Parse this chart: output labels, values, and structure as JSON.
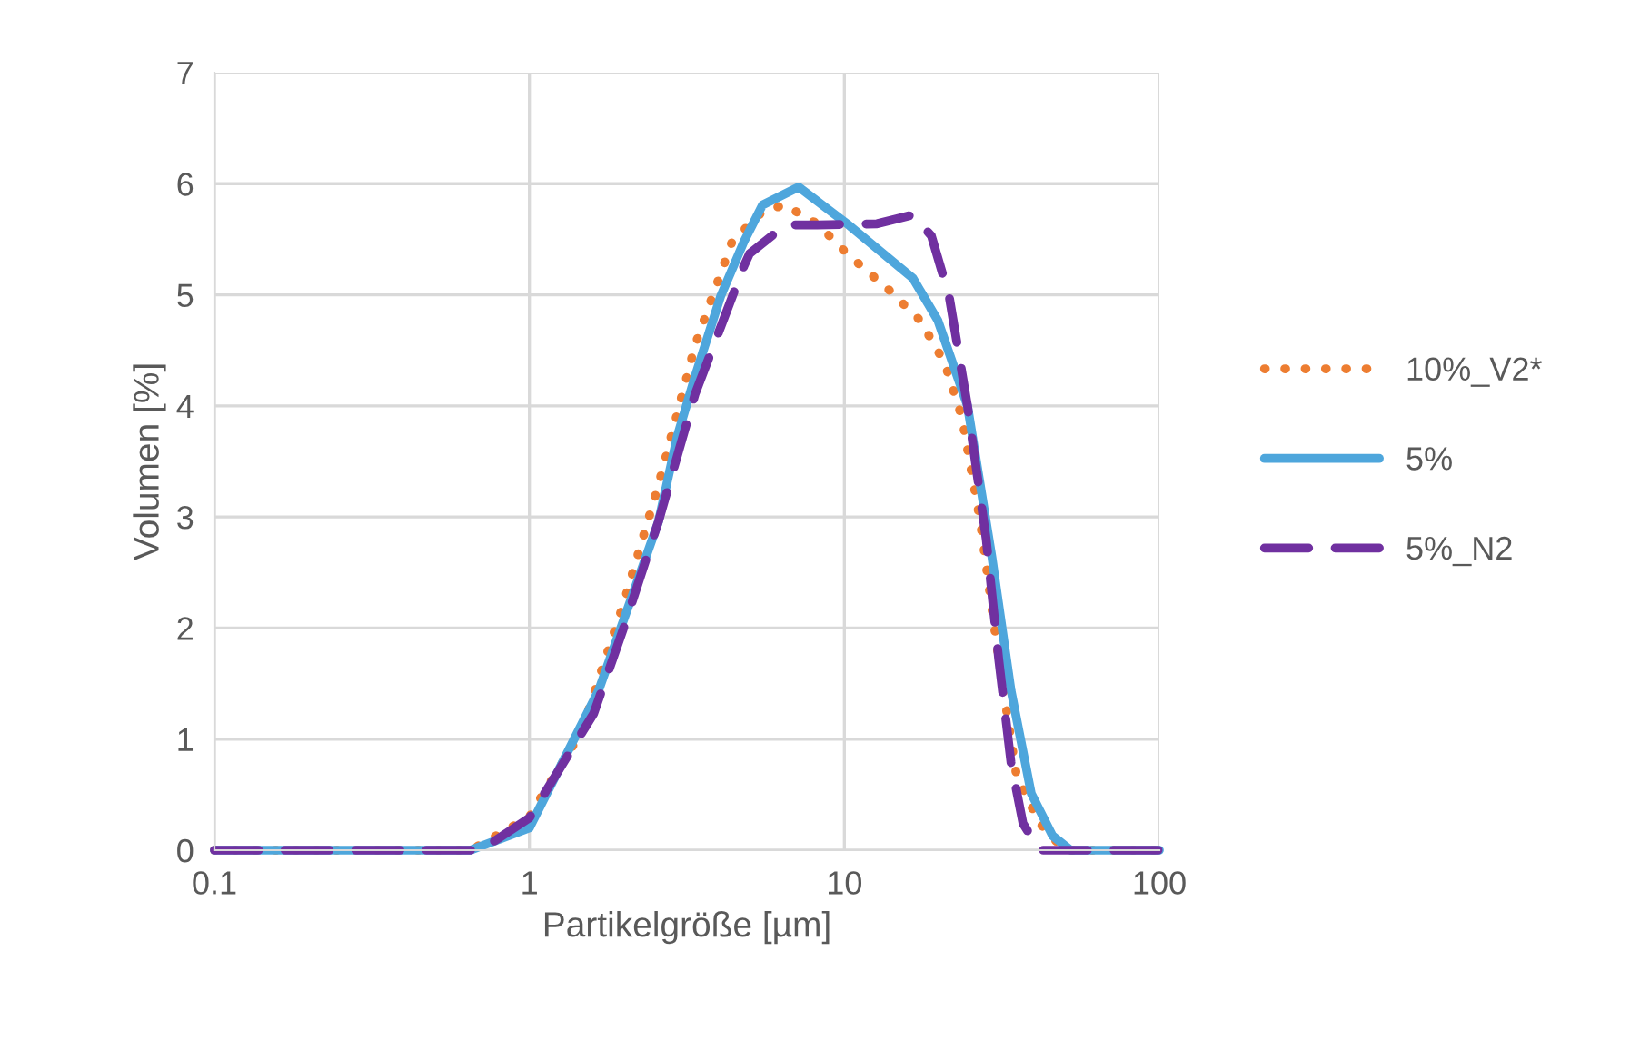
{
  "chart_data": {
    "type": "line",
    "xlabel": "Partikelgröße [µm]",
    "ylabel": "Volumen [%]",
    "log": "x",
    "xlim": [
      0.1,
      100
    ],
    "xticks": [
      0.1,
      1,
      10,
      100
    ],
    "ylim": [
      0,
      7
    ],
    "yticks": [
      0,
      1,
      2,
      3,
      4,
      5,
      6,
      7
    ],
    "grid": true,
    "legend": "right",
    "marker": "none",
    "series": [
      {
        "name": "10%_V2*",
        "color": "#ed7d31",
        "line_style": "dotted",
        "x": [
          0.1,
          0.65,
          1.0,
          1.08,
          1.46,
          1.98,
          2.57,
          3.36,
          4.4,
          5.5,
          6.45,
          8.2,
          10.2,
          13.9,
          17.4,
          20.8,
          23.6,
          27,
          30.9,
          35.2,
          41.7,
          50,
          100
        ],
        "values": [
          0,
          0,
          0.3,
          0.46,
          1.06,
          2.2,
          3.29,
          4.55,
          5.48,
          5.75,
          5.81,
          5.64,
          5.37,
          5.04,
          4.77,
          4.39,
          3.9,
          2.96,
          1.72,
          0.67,
          0.24,
          0,
          0
        ]
      },
      {
        "name": "5%",
        "color": "#4ea6dc",
        "line_style": "solid",
        "x": [
          0.1,
          0.65,
          1.0,
          1.66,
          2.57,
          2.95,
          3.36,
          4.05,
          4.8,
          5.5,
          7.16,
          10.2,
          16.5,
          19.8,
          24.6,
          29.4,
          33.8,
          39.2,
          45.8,
          52.3,
          100
        ],
        "values": [
          0,
          0,
          0.2,
          1.44,
          2.96,
          3.73,
          4.27,
          4.99,
          5.48,
          5.81,
          5.97,
          5.64,
          5.15,
          4.77,
          4.0,
          2.64,
          1.44,
          0.51,
          0.13,
          0,
          0
        ]
      },
      {
        "name": "5%_N2",
        "color": "#7030a0",
        "line_style": "dashed",
        "x": [
          0.1,
          0.7,
          1.0,
          1.6,
          1.98,
          2.57,
          3.36,
          4.8,
          5.0,
          6.5,
          8.2,
          12.7,
          16.5,
          18.9,
          21.5,
          24.6,
          28.2,
          30.9,
          33.8,
          36.9,
          41.7,
          100
        ],
        "values": [
          0,
          0,
          0.29,
          1.23,
          1.98,
          2.96,
          4.11,
          5.26,
          5.37,
          5.63,
          5.63,
          5.64,
          5.72,
          5.53,
          4.99,
          4.0,
          2.8,
          1.72,
          0.79,
          0.24,
          0,
          0
        ]
      }
    ]
  }
}
